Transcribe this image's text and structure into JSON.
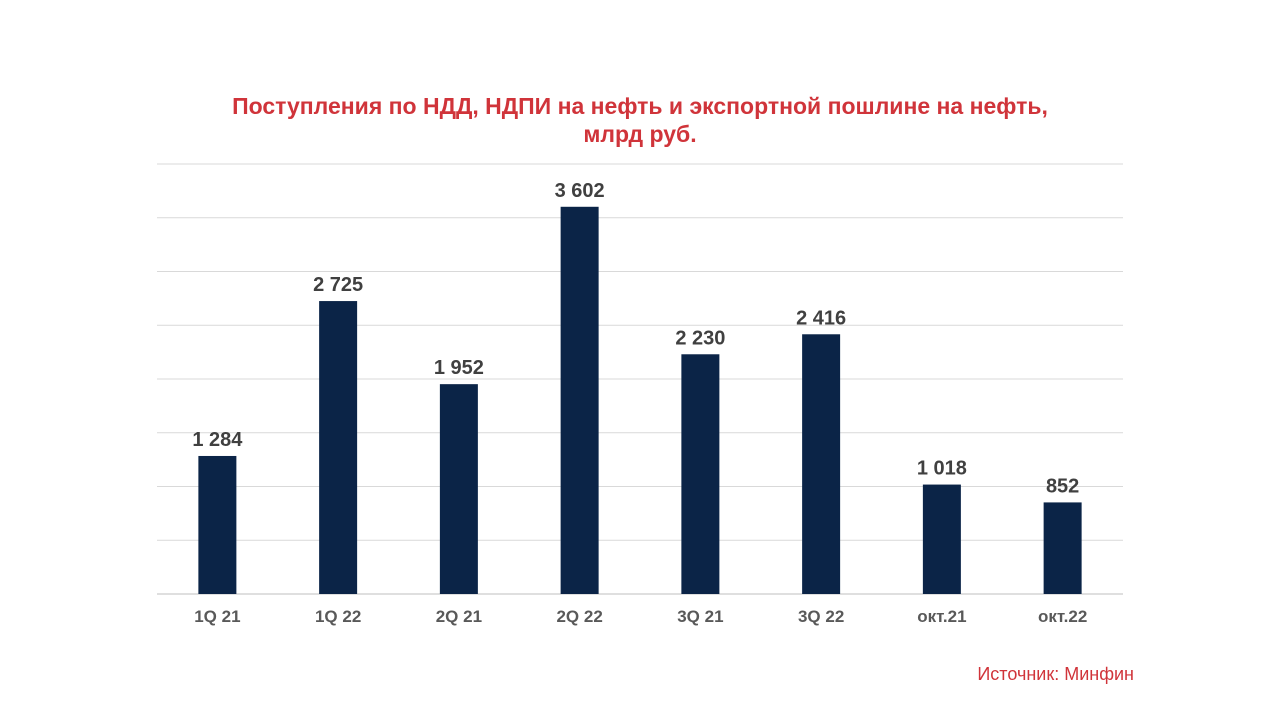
{
  "chart_data": {
    "type": "bar",
    "title": "Поступления по НДД, НДПИ на нефть и экспортной пошлине на нефть, млрд руб.",
    "categories": [
      "1Q 21",
      "1Q 22",
      "2Q 21",
      "2Q 22",
      "3Q 21",
      "3Q 22",
      "окт.21",
      "окт.22"
    ],
    "values": [
      1284,
      2725,
      1952,
      3602,
      2230,
      2416,
      1018,
      852
    ],
    "value_labels": [
      "1 284",
      "2 725",
      "1 952",
      "3 602",
      "2 230",
      "2 416",
      "1 018",
      "852"
    ],
    "xlabel": "",
    "ylabel": "",
    "ylim": [
      0,
      4000
    ],
    "grid": true,
    "y_tick_labels_visible": false,
    "legend": "none",
    "colors": {
      "bar": "#0b2447",
      "title": "#d0343a",
      "labels": "#404040",
      "grid": "#d9d9d9"
    }
  },
  "source": "Источник: Минфин"
}
